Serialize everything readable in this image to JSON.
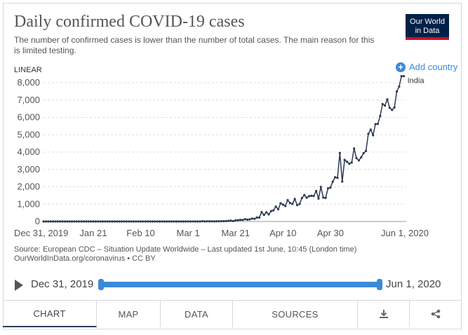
{
  "header": {
    "title": "Daily confirmed COVID-19 cases",
    "subtitle": "The number of confirmed cases is lower than the number of total cases. The main reason for this is limited testing.",
    "logo_line1": "Our World",
    "logo_line2": "in Data",
    "add_country": "Add country",
    "scale_toggle": "LINEAR"
  },
  "colors": {
    "line": "#2d3a52",
    "accent": "#3b8ad9",
    "logo_bg": "#002147",
    "logo_accent": "#c8102e",
    "grid": "#dddddd"
  },
  "chart_data": {
    "type": "line",
    "title": "Daily confirmed COVID-19 cases",
    "xlabel": "",
    "ylabel": "",
    "ylim": [
      0,
      8500
    ],
    "yticks": [
      0,
      1000,
      2000,
      3000,
      4000,
      5000,
      6000,
      7000,
      8000
    ],
    "ytick_labels": [
      "0",
      "1,000",
      "2,000",
      "3,000",
      "4,000",
      "5,000",
      "6,000",
      "7,000",
      "8,000"
    ],
    "xtick_labels": [
      "Dec 31, 2019",
      "Jan 21",
      "Feb 10",
      "Mar 1",
      "Mar 21",
      "Apr 10",
      "Apr 30",
      "Jun 1, 2020"
    ],
    "xtick_days": [
      0,
      21,
      41,
      61,
      81,
      101,
      121,
      153
    ],
    "grid": true,
    "legend": "right",
    "series": [
      {
        "name": "India",
        "start_date": "2019-12-31",
        "values": [
          0,
          0,
          0,
          0,
          0,
          0,
          0,
          0,
          0,
          0,
          0,
          0,
          0,
          0,
          0,
          0,
          0,
          0,
          0,
          0,
          0,
          0,
          0,
          0,
          0,
          0,
          0,
          0,
          0,
          0,
          0,
          1,
          0,
          1,
          0,
          0,
          1,
          0,
          0,
          0,
          0,
          0,
          0,
          0,
          0,
          0,
          0,
          0,
          0,
          0,
          0,
          0,
          0,
          0,
          0,
          0,
          0,
          0,
          0,
          0,
          0,
          0,
          0,
          3,
          0,
          0,
          1,
          17,
          5,
          8,
          11,
          5,
          6,
          10,
          10,
          14,
          17,
          22,
          30,
          49,
          23,
          64,
          74,
          90,
          85,
          130,
          105,
          120,
          170,
          150,
          227,
          225,
          540,
          380,
          530,
          410,
          600,
          640,
          860,
          700,
          1050,
          970,
          890,
          1230,
          1060,
          1010,
          1300,
          940,
          1010,
          1350,
          1520,
          1370,
          1460,
          1480,
          1470,
          1760,
          1320,
          1990,
          1380,
          1360,
          1910,
          1950,
          2300,
          2550,
          2510,
          3950,
          2300,
          3550,
          3440,
          3330,
          3400,
          4210,
          3650,
          3520,
          3700,
          3940,
          4060,
          5050,
          5300,
          4970,
          5610,
          5620,
          6080,
          6770,
          6680,
          7040,
          6550,
          6430,
          6570,
          7490,
          7780,
          8380,
          8380
        ]
      }
    ]
  },
  "source": {
    "line1": "Source: European CDC – Situation Update Worldwide – Last updated 1st June, 10:45 (London time)",
    "line2": "OurWorldInData.org/coronavirus • CC BY"
  },
  "timeline": {
    "start": "Dec 31, 2019",
    "end": "Jun 1, 2020"
  },
  "tabs": {
    "chart": "CHART",
    "map": "MAP",
    "data": "DATA",
    "sources": "SOURCES",
    "download_icon": "download-icon",
    "share_icon": "share-icon"
  }
}
